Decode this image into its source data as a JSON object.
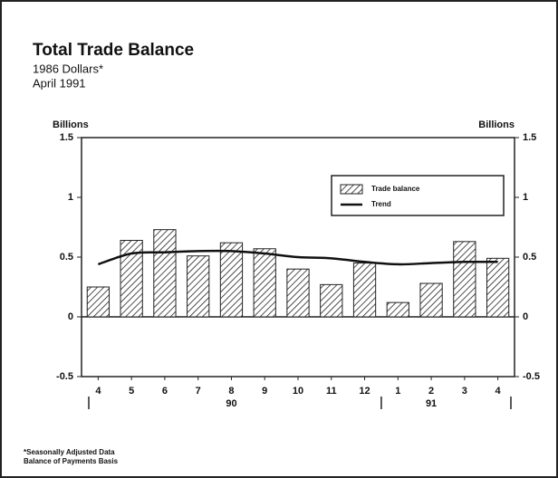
{
  "chart_data": {
    "type": "bar",
    "title": "Total Trade Balance",
    "subtitle": [
      "1986 Dollars*",
      "April 1991"
    ],
    "y_label": "Billions",
    "y2_label": "Billions",
    "categories": [
      "4",
      "5",
      "6",
      "7",
      "8",
      "9",
      "10",
      "11",
      "12",
      "1",
      "2",
      "3",
      "4"
    ],
    "year_labels": [
      "90",
      "91"
    ],
    "series": [
      {
        "name": "Trade balance",
        "type": "bar",
        "color": "#222222",
        "values": [
          0.25,
          0.64,
          0.73,
          0.51,
          0.62,
          0.57,
          0.4,
          0.27,
          0.45,
          0.12,
          0.28,
          0.63,
          0.49
        ]
      },
      {
        "name": "Trend",
        "type": "line",
        "color": "#111111",
        "values": [
          0.44,
          0.53,
          0.54,
          0.55,
          0.55,
          0.53,
          0.5,
          0.49,
          0.46,
          0.44,
          0.45,
          0.46,
          0.46
        ]
      }
    ],
    "ylim": [
      -0.5,
      1.5
    ],
    "yticks": [
      -0.5,
      0,
      0.5,
      1,
      1.5
    ],
    "footnotes": [
      "*Seasonally Adjusted Data",
      "Balance of Payments Basis"
    ]
  }
}
